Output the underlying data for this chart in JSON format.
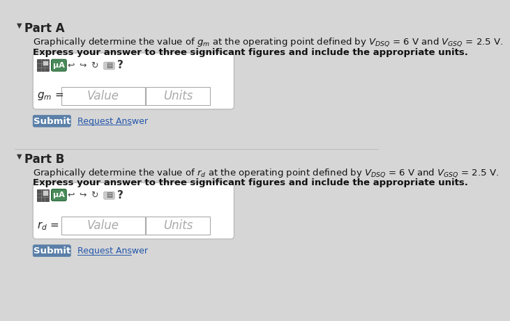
{
  "bg_color": "#d6d6d6",
  "part_a_label": "Part A",
  "part_b_label": "Part B",
  "part_a_line1": "Graphically determine the value of $g_m$ at the operating point defined by $V_{DSQ}$ = 6 V and $V_{GSQ}$ = 2.5 V.",
  "part_a_line2": "Express your answer to three significant figures and include the appropriate units.",
  "part_b_line1": "Graphically determine the value of $r_d$ at the operating point defined by $V_{DSQ}$ = 6 V and $V_{GSQ}$ = 2.5 V.",
  "part_b_line2": "Express your answer to three significant figures and include the appropriate units.",
  "gm_label": "$g_m$ =",
  "rd_label": "$r_d$ =",
  "value_placeholder": "Value",
  "units_placeholder": "Units",
  "submit_label": "Submit",
  "request_answer_label": "Request Answer",
  "toolbar_symbol": "μA",
  "question_mark": "?",
  "box_bg": "#ffffff",
  "submit_bg": "#5a7fa8",
  "submit_fg": "#ffffff",
  "part_label_color": "#222222",
  "triangle_color": "#333333"
}
